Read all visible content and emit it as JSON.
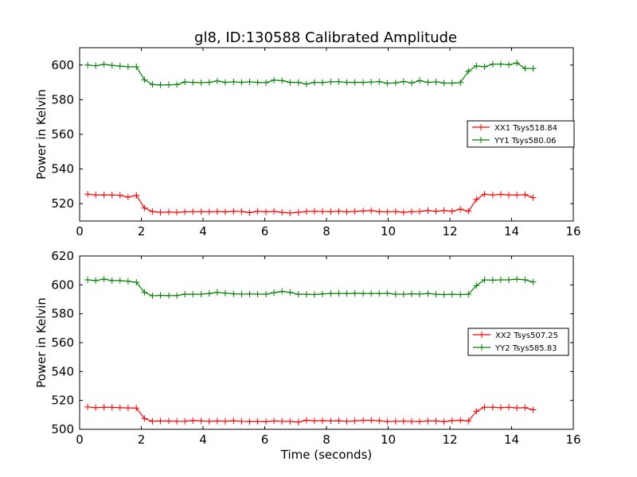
{
  "title": "gl8, ID:130588 Calibrated Amplitude",
  "chart_data": [
    {
      "type": "line",
      "ylabel": "Power in Kelvin",
      "xlabel": "",
      "xlim": [
        0,
        16
      ],
      "ylim": [
        510,
        610
      ],
      "xticks": [
        0,
        2,
        4,
        6,
        8,
        10,
        12,
        14,
        16
      ],
      "yticks": [
        520,
        540,
        560,
        580,
        600
      ],
      "grid": false,
      "legend_position": "right",
      "x": [
        0.26,
        0.52,
        0.79,
        1.05,
        1.31,
        1.57,
        1.84,
        2.1,
        2.36,
        2.62,
        2.89,
        3.15,
        3.41,
        3.67,
        3.94,
        4.2,
        4.46,
        4.72,
        4.99,
        5.25,
        5.51,
        5.77,
        6.04,
        6.3,
        6.56,
        6.82,
        7.09,
        7.35,
        7.61,
        7.87,
        8.14,
        8.4,
        8.66,
        8.92,
        9.19,
        9.45,
        9.71,
        9.97,
        10.24,
        10.5,
        10.76,
        11.02,
        11.29,
        11.55,
        11.81,
        12.07,
        12.34,
        12.6,
        12.86,
        13.12,
        13.39,
        13.65,
        13.91,
        14.17,
        14.44,
        14.7
      ],
      "series": [
        {
          "name": "XX1 Tsys518.84",
          "color": "#ff0000",
          "values": [
            525.5,
            525.0,
            525.0,
            525.0,
            524.8,
            523.8,
            524.8,
            517.5,
            515.5,
            515.0,
            515.2,
            515.0,
            515.3,
            515.4,
            515.4,
            515.3,
            515.5,
            515.3,
            515.6,
            515.5,
            514.8,
            515.6,
            515.3,
            515.6,
            515.0,
            514.6,
            515.0,
            515.5,
            515.6,
            515.5,
            515.4,
            515.6,
            515.3,
            515.5,
            515.8,
            516.0,
            515.4,
            515.3,
            515.5,
            515.0,
            515.4,
            515.5,
            516.0,
            515.6,
            516.0,
            515.6,
            516.8,
            515.6,
            522.5,
            525.5,
            525.0,
            525.4,
            525.0,
            525.0,
            525.2,
            523.5
          ]
        },
        {
          "name": "YY1 Tsys580.06",
          "color": "#008000",
          "values": [
            600.0,
            599.6,
            600.4,
            599.8,
            599.4,
            599.0,
            599.0,
            591.5,
            588.8,
            588.5,
            588.6,
            588.7,
            590.2,
            590.0,
            589.8,
            590.0,
            590.8,
            590.0,
            590.3,
            590.0,
            590.3,
            590.0,
            589.8,
            591.3,
            591.0,
            590.0,
            590.0,
            589.0,
            590.0,
            589.9,
            590.3,
            590.4,
            590.0,
            590.0,
            590.0,
            590.2,
            590.4,
            589.5,
            589.7,
            590.5,
            589.7,
            591.0,
            590.0,
            590.3,
            589.6,
            589.6,
            589.9,
            596.5,
            599.5,
            599.0,
            600.5,
            600.5,
            600.2,
            601.2,
            598.0,
            598.0
          ]
        }
      ]
    },
    {
      "type": "line",
      "ylabel": "Power in Kelvin",
      "xlabel": "Time (seconds)",
      "xlim": [
        0,
        16
      ],
      "ylim": [
        500,
        620
      ],
      "xticks": [
        0,
        2,
        4,
        6,
        8,
        10,
        12,
        14,
        16
      ],
      "yticks": [
        500,
        520,
        540,
        560,
        580,
        600,
        620
      ],
      "grid": false,
      "legend_position": "right",
      "x": [
        0.26,
        0.52,
        0.79,
        1.05,
        1.31,
        1.57,
        1.84,
        2.1,
        2.36,
        2.62,
        2.89,
        3.15,
        3.41,
        3.67,
        3.94,
        4.2,
        4.46,
        4.72,
        4.99,
        5.25,
        5.51,
        5.77,
        6.04,
        6.3,
        6.56,
        6.82,
        7.09,
        7.35,
        7.61,
        7.87,
        8.14,
        8.4,
        8.66,
        8.92,
        9.19,
        9.45,
        9.71,
        9.97,
        10.24,
        10.5,
        10.76,
        11.02,
        11.29,
        11.55,
        11.81,
        12.07,
        12.34,
        12.6,
        12.86,
        13.12,
        13.39,
        13.65,
        13.91,
        14.17,
        14.44,
        14.7
      ],
      "series": [
        {
          "name": "XX2 Tsys507.25",
          "color": "#ff0000",
          "values": [
            515.5,
            515.0,
            515.3,
            515.2,
            515.0,
            514.8,
            514.7,
            507.5,
            505.5,
            505.8,
            505.7,
            505.5,
            505.6,
            506.0,
            505.8,
            505.5,
            505.8,
            505.5,
            505.9,
            505.5,
            505.4,
            505.5,
            505.3,
            505.8,
            505.5,
            505.5,
            505.0,
            506.3,
            505.8,
            505.9,
            505.8,
            505.9,
            505.5,
            505.8,
            506.2,
            506.3,
            505.9,
            505.4,
            505.5,
            505.6,
            505.5,
            505.4,
            505.8,
            505.8,
            505.3,
            506.0,
            506.3,
            505.7,
            512.5,
            515.3,
            515.3,
            515.0,
            515.3,
            514.8,
            515.0,
            513.5
          ]
        },
        {
          "name": "YY2 Tsys585.83",
          "color": "#008000",
          "values": [
            603.5,
            603.0,
            604.0,
            603.0,
            603.0,
            602.5,
            601.8,
            594.8,
            592.5,
            592.7,
            592.6,
            592.6,
            593.6,
            593.5,
            593.5,
            594.0,
            594.8,
            594.3,
            593.8,
            593.6,
            593.7,
            593.6,
            593.6,
            594.6,
            595.5,
            594.8,
            593.5,
            593.5,
            593.3,
            593.8,
            594.0,
            594.1,
            594.0,
            594.2,
            594.0,
            594.0,
            594.0,
            594.2,
            593.5,
            593.5,
            593.8,
            593.6,
            594.0,
            593.5,
            593.3,
            593.5,
            593.3,
            593.5,
            599.5,
            603.5,
            603.3,
            603.5,
            603.5,
            604.0,
            603.5,
            602.0
          ]
        }
      ]
    }
  ]
}
